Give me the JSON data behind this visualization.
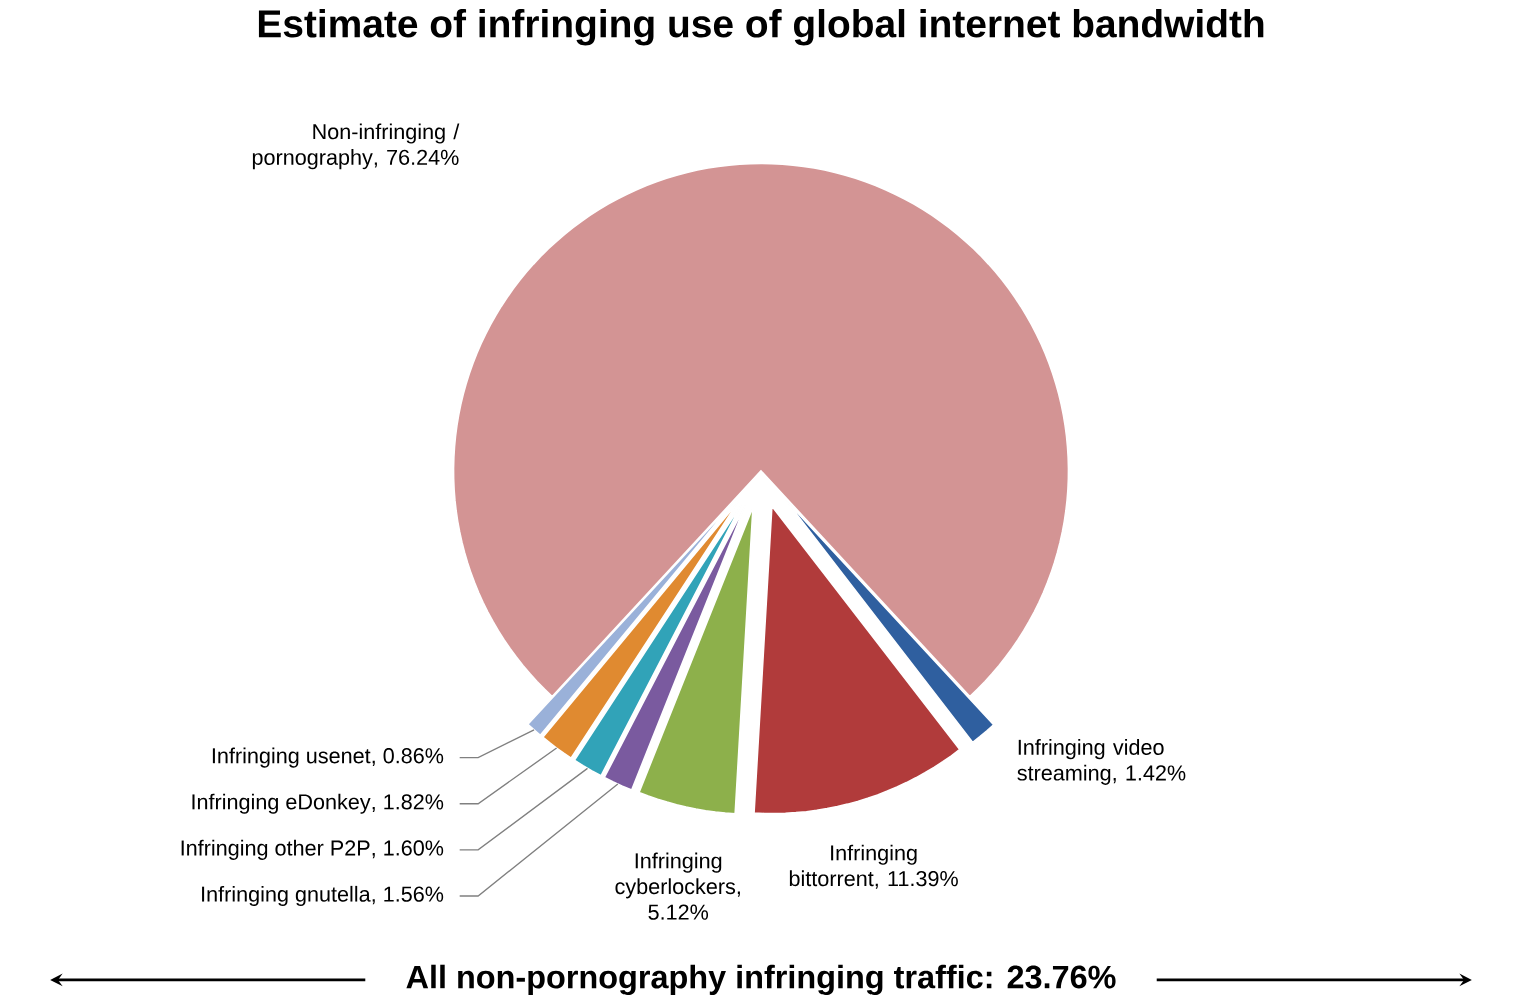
{
  "chart_data": {
    "type": "pie",
    "title": "Estimate of infringing use of global internet bandwidth",
    "categories": [
      "Non-infringing / pornography",
      "Infringing video streaming",
      "Infringing bittorrent",
      "Infringing cyberlockers",
      "Infringing gnutella",
      "Infringing other P2P",
      "Infringing eDonkey",
      "Infringing usenet"
    ],
    "values": [
      76.24,
      1.42,
      11.39,
      5.12,
      1.56,
      1.6,
      1.82,
      0.86
    ],
    "value_labels": [
      ", 76.24%",
      ", 1.42%",
      ", 11.39%",
      ", 5.12%",
      ", 1.56%",
      ", 1.60%",
      ", 1.82%",
      ", 0.86%"
    ],
    "colors": [
      "#d39494",
      "#2f5f9f",
      "#b13b3b",
      "#8db04b",
      "#7a5a9f",
      "#31a3b8",
      "#e08a30",
      "#9ab1d9"
    ],
    "annotations": [
      "All non-pornography infringing traffic: 23.76%"
    ]
  }
}
